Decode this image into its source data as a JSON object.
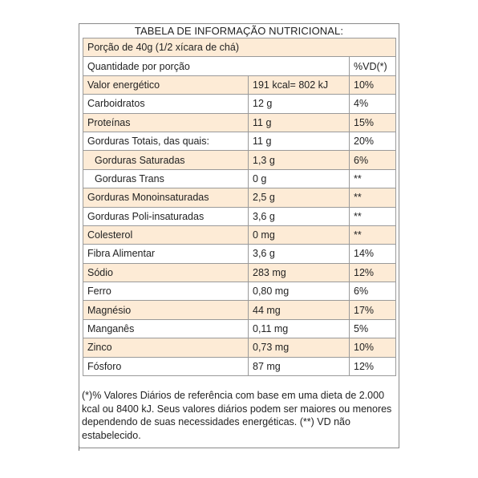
{
  "title": "TABELA DE INFORMAÇÃO NUTRICIONAL:",
  "serving": "Porção de 40g (1/2 xícara de chá)",
  "header": {
    "quantity": "Quantidade por porção",
    "vd": "%VD(*)"
  },
  "rows": [
    {
      "name": "Valor energético",
      "amount": "191 kcal= 802 kJ",
      "vd": "10%"
    },
    {
      "name": "Carboidratos",
      "amount": "12 g",
      "vd": "4%"
    },
    {
      "name": "Proteínas",
      "amount": "11 g",
      "vd": "15%"
    },
    {
      "name": "Gorduras Totais, das quais:",
      "amount": "11 g",
      "vd": "20%"
    },
    {
      "name": "Gorduras Saturadas",
      "amount": "1,3 g",
      "vd": "6%"
    },
    {
      "name": "Gorduras Trans",
      "amount": "0 g",
      "vd": "**"
    },
    {
      "name": "Gorduras Monoinsaturadas",
      "amount": "2,5 g",
      "vd": "**"
    },
    {
      "name": "Gorduras Poli-insaturadas",
      "amount": "3,6 g",
      "vd": "**"
    },
    {
      "name": "Colesterol",
      "amount": "0 mg",
      "vd": "**"
    },
    {
      "name": "Fibra Alimentar",
      "amount": "3,6 g",
      "vd": "14%"
    },
    {
      "name": "Sódio",
      "amount": "283 mg",
      "vd": "12%"
    },
    {
      "name": "Ferro",
      "amount": "0,80 mg",
      "vd": "6%"
    },
    {
      "name": "Magnésio",
      "amount": "44 mg",
      "vd": "17%"
    },
    {
      "name": "Manganês",
      "amount": "0,11 mg",
      "vd": "5%"
    },
    {
      "name": "Zinco",
      "amount": "0,73 mg",
      "vd": "10%"
    },
    {
      "name": "Fósforo",
      "amount": "87 mg",
      "vd": "12%"
    }
  ],
  "footnote": "(*)% Valores Diários de referência com base em uma dieta de 2.000 kcal ou 8400 kJ. Seus valores diários podem ser maiores ou menores dependendo de suas necessidades energéticas. (**) VD não estabelecido.",
  "colors": {
    "shade": "#fdebd6",
    "border": "#9a9a9a"
  }
}
